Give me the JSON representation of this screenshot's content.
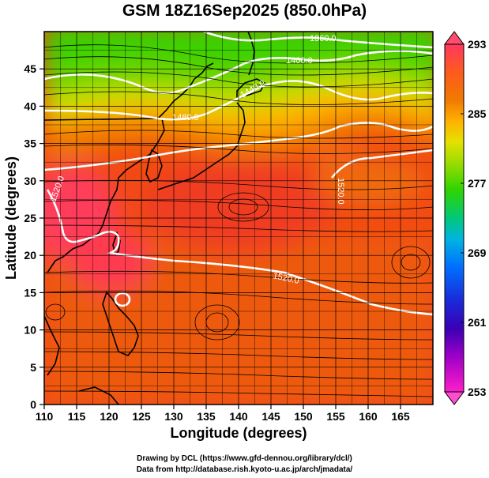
{
  "title": "GSM 18Z16Sep2025 (850.0hPa)",
  "x_axis": {
    "label": "Longitude (degrees)",
    "range": [
      110,
      170
    ],
    "ticks": [
      110,
      115,
      120,
      125,
      130,
      135,
      140,
      145,
      150,
      155,
      160,
      165
    ]
  },
  "y_axis": {
    "label": "Latitude  (degrees)",
    "range": [
      0,
      50
    ],
    "ticks": [
      0,
      5,
      10,
      15,
      20,
      25,
      30,
      35,
      40,
      45
    ]
  },
  "colorbar": {
    "range": [
      253,
      293
    ],
    "tick_labels": [
      "293",
      "285",
      "277",
      "269",
      "261",
      "253"
    ],
    "colors": [
      "#ff3860",
      "#ff5a1e",
      "#f07a00",
      "#ffb000",
      "#e6e000",
      "#9ddc00",
      "#2ed400",
      "#00c878",
      "#00b4e0",
      "#0070ff",
      "#1a28d8",
      "#3c00b4",
      "#a000c8",
      "#ff1ec8"
    ]
  },
  "contour_labels": [
    "1360.0",
    "1400.0",
    "1440.0",
    "1480.0",
    "1520.0",
    "1520.0",
    "1520.0"
  ],
  "credits": [
    "Drawing by DCL (https://www.gfd-dennou.org/library/dcl/)",
    "Data from http://database.rish.kyoto-u.ac.jp/arch/jmadata/"
  ]
}
